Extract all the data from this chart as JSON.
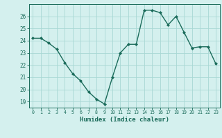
{
  "x": [
    0,
    1,
    2,
    3,
    4,
    5,
    6,
    7,
    8,
    9,
    10,
    11,
    12,
    13,
    14,
    15,
    16,
    17,
    18,
    19,
    20,
    21,
    22,
    23
  ],
  "y": [
    24.2,
    24.2,
    23.8,
    23.3,
    22.2,
    21.3,
    20.7,
    19.8,
    19.2,
    18.8,
    21.0,
    23.0,
    23.7,
    23.7,
    26.5,
    26.5,
    26.3,
    25.3,
    26.0,
    24.7,
    23.4,
    23.5,
    23.5,
    22.1
  ],
  "xlabel": "Humidex (Indice chaleur)",
  "ylim": [
    18.5,
    27.0
  ],
  "xlim": [
    -0.5,
    23.5
  ],
  "yticks": [
    19,
    20,
    21,
    22,
    23,
    24,
    25,
    26
  ],
  "xticks": [
    0,
    1,
    2,
    3,
    4,
    5,
    6,
    7,
    8,
    9,
    10,
    11,
    12,
    13,
    14,
    15,
    16,
    17,
    18,
    19,
    20,
    21,
    22,
    23
  ],
  "line_color": "#1a6b5a",
  "marker_color": "#1a6b5a",
  "bg_color": "#d4f0ee",
  "grid_color": "#a8d8d4",
  "axis_color": "#1a6b5a",
  "tick_label_color": "#1a6b5a",
  "xlabel_color": "#1a6b5a"
}
